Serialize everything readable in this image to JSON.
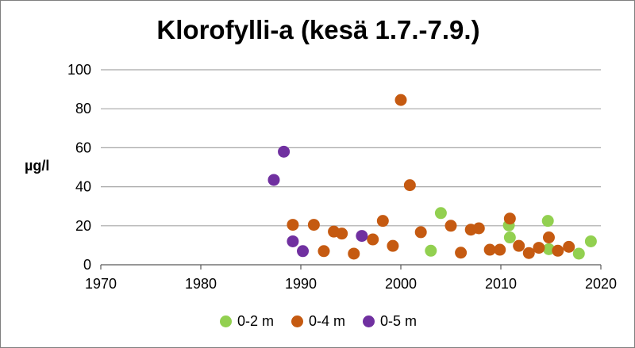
{
  "chart_data": {
    "type": "scatter",
    "title": "Klorofylli-a (kesä 1.7.-7.9.)",
    "ylabel": "µg/l",
    "xlabel": "",
    "xlim": [
      1970,
      2020
    ],
    "ylim": [
      0,
      100
    ],
    "x_ticks": [
      1970,
      1980,
      1990,
      2000,
      2010,
      2020
    ],
    "y_ticks": [
      0,
      20,
      40,
      60,
      80,
      100
    ],
    "grid": "horizontal",
    "legend_position": "bottom",
    "series": [
      {
        "name": "0-2 m",
        "color": "#92d050",
        "points": [
          [
            2003,
            7.2
          ],
          [
            2004,
            26.5
          ],
          [
            2010.8,
            20.2
          ],
          [
            2010.9,
            14
          ],
          [
            2014.7,
            22.5
          ],
          [
            2014.8,
            8
          ],
          [
            2017.8,
            5.7
          ],
          [
            2019,
            12
          ]
        ]
      },
      {
        "name": "0-4 m",
        "color": "#c55a11",
        "points": [
          [
            1989.2,
            20.5
          ],
          [
            1991.3,
            20.5
          ],
          [
            1992.3,
            7
          ],
          [
            1993.3,
            17
          ],
          [
            1994.1,
            16
          ],
          [
            1995.3,
            5.7
          ],
          [
            1997.2,
            13
          ],
          [
            1998.2,
            22.5
          ],
          [
            1999.2,
            9.7
          ],
          [
            2000,
            84.5
          ],
          [
            2000.9,
            40.8
          ],
          [
            2002,
            16.7
          ],
          [
            2005,
            20
          ],
          [
            2006,
            6.2
          ],
          [
            2007,
            18
          ],
          [
            2007.8,
            18.7
          ],
          [
            2008.9,
            7.7
          ],
          [
            2009.9,
            7.7
          ],
          [
            2010.9,
            23.7
          ],
          [
            2011.8,
            9.7
          ],
          [
            2012.8,
            6
          ],
          [
            2013.8,
            8.7
          ],
          [
            2014.8,
            14
          ],
          [
            2015.7,
            7.2
          ],
          [
            2016.8,
            9.2
          ]
        ]
      },
      {
        "name": "0-5 m",
        "color": "#7030a0",
        "points": [
          [
            1987.3,
            43.5
          ],
          [
            1988.3,
            58
          ],
          [
            1989.2,
            12
          ],
          [
            1990.2,
            7
          ],
          [
            1996.1,
            14.8
          ]
        ]
      }
    ]
  }
}
